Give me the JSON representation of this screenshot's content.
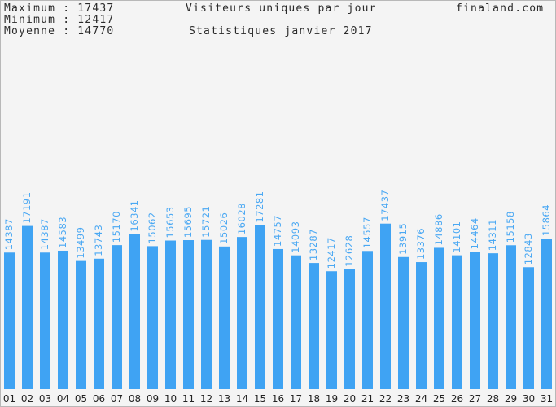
{
  "stats": {
    "max_label": "Maximum",
    "max_value": "17437",
    "min_label": "Minimum",
    "min_value": "12417",
    "avg_label": "Moyenne",
    "avg_value": "14770"
  },
  "header": {
    "title": "Visiteurs uniques par jour",
    "subtitle": "Statistiques janvier 2017",
    "site": "finaland.com"
  },
  "colors": {
    "bar": "#3fa3f3",
    "value_label": "#4aa8f3",
    "background": "#f4f4f4"
  },
  "chart_data": {
    "type": "bar",
    "title": "Visiteurs uniques par jour",
    "subtitle": "Statistiques janvier 2017",
    "categories": [
      "01",
      "02",
      "03",
      "04",
      "05",
      "06",
      "07",
      "08",
      "09",
      "10",
      "11",
      "12",
      "13",
      "14",
      "15",
      "16",
      "17",
      "18",
      "19",
      "20",
      "21",
      "22",
      "23",
      "24",
      "25",
      "26",
      "27",
      "28",
      "29",
      "30",
      "31"
    ],
    "values": [
      14387,
      17191,
      14387,
      14583,
      13499,
      13743,
      15170,
      16341,
      15062,
      15653,
      15695,
      15721,
      15026,
      16028,
      17281,
      14757,
      14093,
      13287,
      12417,
      12628,
      14557,
      17437,
      13915,
      13376,
      14886,
      14101,
      14464,
      14311,
      15158,
      12843,
      15864
    ],
    "ylim": [
      0,
      41000
    ],
    "grid": false,
    "legend": "none"
  }
}
